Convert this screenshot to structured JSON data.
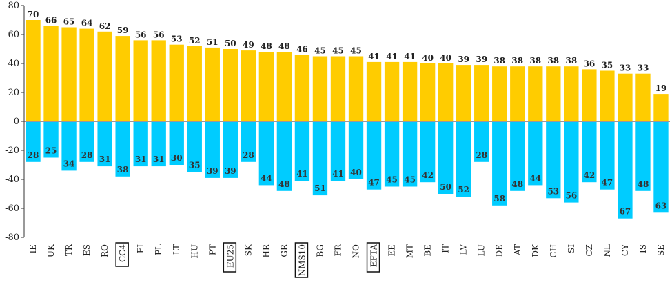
{
  "chart_data": {
    "type": "bar",
    "categories": [
      "IE",
      "UK",
      "TR",
      "ES",
      "RO",
      "CC4",
      "FI",
      "PL",
      "LT",
      "HU",
      "PT",
      "EU25",
      "SK",
      "HR",
      "GR",
      "NMS10",
      "BG",
      "FR",
      "NO",
      "EFTA",
      "EE",
      "MT",
      "BE",
      "IT",
      "LV",
      "LU",
      "DE",
      "AT",
      "DK",
      "CH",
      "SI",
      "CZ",
      "NL",
      "CY",
      "IS",
      "SE"
    ],
    "highlighted_categories": [
      "CC4",
      "EU25",
      "NMS10",
      "EFTA"
    ],
    "series": [
      {
        "color": "#FFCC00",
        "values": [
          70,
          66,
          65,
          64,
          62,
          59,
          56,
          56,
          53,
          52,
          51,
          50,
          49,
          48,
          48,
          46,
          45,
          45,
          45,
          41,
          41,
          41,
          40,
          40,
          39,
          39,
          38,
          38,
          38,
          38,
          38,
          36,
          35,
          33,
          33,
          19
        ]
      },
      {
        "color": "#00CCFF",
        "values": [
          -28,
          -25,
          -34,
          -28,
          -31,
          -38,
          -31,
          -31,
          -30,
          -35,
          -39,
          -39,
          -28,
          -44,
          -48,
          -41,
          -51,
          -41,
          -40,
          -47,
          -45,
          -45,
          -42,
          -50,
          -52,
          -28,
          -58,
          -48,
          -44,
          -53,
          -56,
          -42,
          -47,
          -67,
          -48,
          -63
        ],
        "labels": [
          "28",
          "25",
          "34",
          "28",
          "31",
          "38",
          "31",
          "31",
          "30",
          "35",
          "39",
          "39",
          "28",
          "44",
          "48",
          "41",
          "51",
          "41",
          "40",
          "47",
          "45",
          "45",
          "42",
          "50",
          "52",
          "28",
          "58",
          "48",
          "44",
          "53",
          "56",
          "42",
          "47",
          "67",
          "48",
          "63"
        ]
      }
    ],
    "yticks": [
      80,
      60,
      40,
      20,
      0,
      -20,
      -40,
      -60,
      -80
    ],
    "ylim": [
      -80,
      80
    ],
    "grid": false,
    "title": "",
    "xlabel": "",
    "ylabel": ""
  }
}
